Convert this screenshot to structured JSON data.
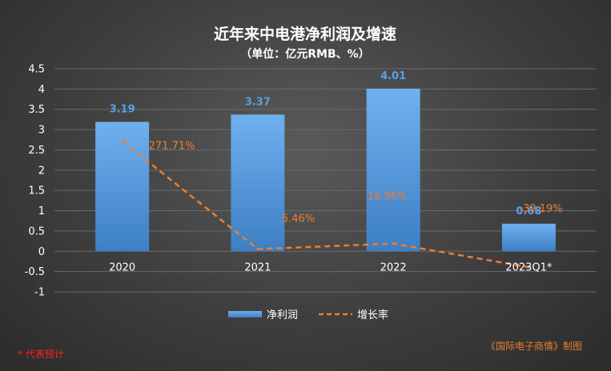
{
  "chart_data": {
    "type": "bar",
    "title": "近年来中电港净利润及增速",
    "subtitle": "（单位：亿元RMB、%）",
    "categories": [
      "2020",
      "2021",
      "2022",
      "2023Q1*"
    ],
    "ylim": [
      -1,
      4.5
    ],
    "yticks": [
      "4.5",
      "4",
      "3.5",
      "3",
      "2.5",
      "2",
      "1.5",
      "1",
      "0.5",
      "0",
      "-0.5",
      "-1"
    ],
    "series": [
      {
        "name": "净利润",
        "type": "bar",
        "values": [
          3.19,
          3.37,
          4.01,
          0.68
        ],
        "labels": [
          "3.19",
          "3.37",
          "4.01",
          "0.68"
        ],
        "color": "#5b9bd5"
      },
      {
        "name": "增长率",
        "type": "line",
        "values": [
          2.7171,
          0.0546,
          0.1896,
          -0.3919
        ],
        "labels": [
          "271.71%",
          "5.46%",
          "18.96%",
          "-39.19%"
        ],
        "color": "#ed7d31",
        "style": "dashed"
      }
    ],
    "grid": true,
    "legend_position": "bottom"
  },
  "footnote": "* 代表预计",
  "source": "《国际电子商情》制图"
}
